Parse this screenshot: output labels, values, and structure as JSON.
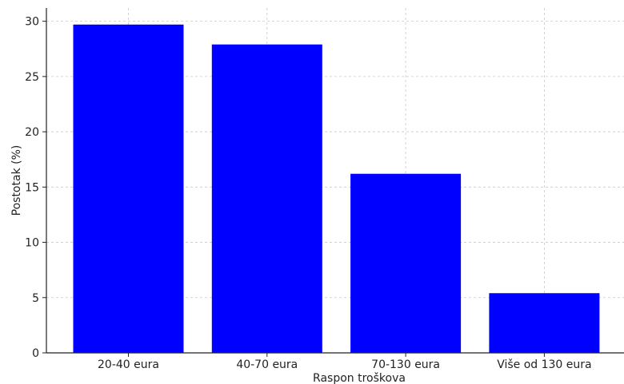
{
  "chart_data": {
    "type": "bar",
    "categories": [
      "20-40 eura",
      "40-70 eura",
      "70-130 eura",
      "Više od 130 eura"
    ],
    "values": [
      29.7,
      27.9,
      16.2,
      5.4
    ],
    "title": "",
    "xlabel": "Raspon troškova",
    "ylabel": "Postotak (%)",
    "ylim": [
      0,
      31.2
    ],
    "yticks": [
      0,
      5,
      10,
      15,
      20,
      25,
      30
    ],
    "grid": true,
    "bar_color": "#0000ff",
    "legend": "none"
  }
}
